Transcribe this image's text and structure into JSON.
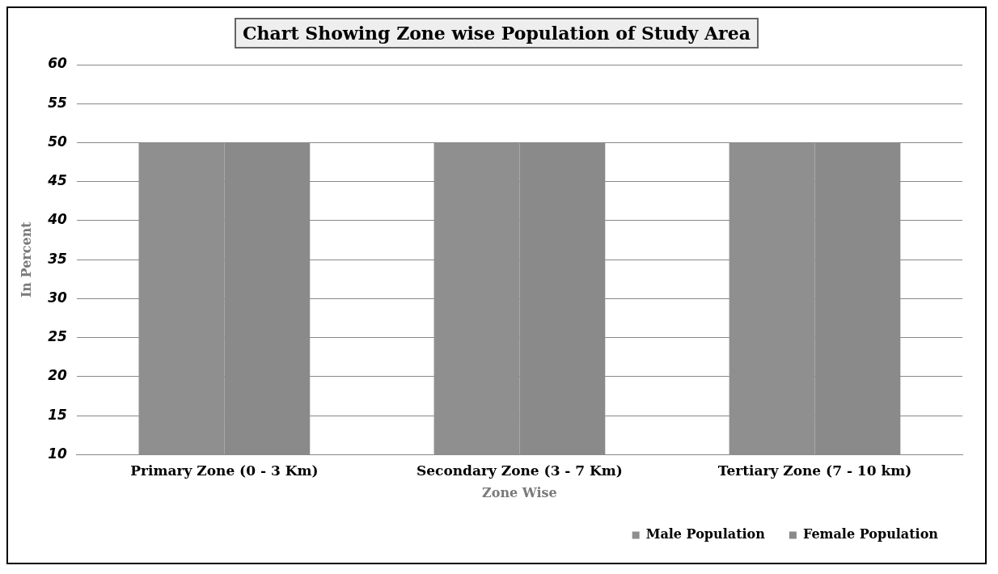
{
  "chart_data": {
    "type": "bar",
    "title": "Chart Showing Zone wise Population of Study Area",
    "xlabel": "Zone Wise",
    "ylabel": "In Percent",
    "categories": [
      "Primary Zone (0 - 3 Km)",
      "Secondary Zone (3 - 7 Km)",
      "Tertiary Zone (7 - 10 km)"
    ],
    "series": [
      {
        "name": "Male Population",
        "color": "#8f8f8f",
        "values": [
          50,
          50,
          50
        ]
      },
      {
        "name": "Female Population",
        "color": "#8a8a8a",
        "values": [
          50,
          50,
          50
        ]
      }
    ],
    "ylim": [
      10,
      60
    ],
    "yticks": [
      10,
      15,
      20,
      25,
      30,
      35,
      40,
      45,
      50,
      55,
      60
    ],
    "grid": "y",
    "legend": "bottom right"
  }
}
